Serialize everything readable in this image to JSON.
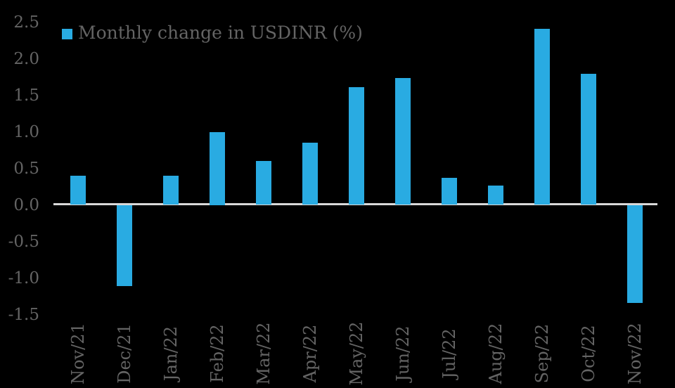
{
  "chart_data": {
    "type": "bar",
    "title": "",
    "legend": "Monthly change in USDINR (%)",
    "legend_position": "top-left",
    "categories": [
      "Nov/21",
      "Dec/21",
      "Jan/22",
      "Feb/22",
      "Mar/22",
      "Apr/22",
      "May/22",
      "Jun/22",
      "Jul/22",
      "Aug/22",
      "Sep/22",
      "Oct/22",
      "Nov/22"
    ],
    "values": [
      0.4,
      -1.11,
      0.4,
      1.0,
      0.6,
      0.85,
      1.61,
      1.74,
      0.37,
      0.26,
      2.41,
      1.79,
      -1.34
    ],
    "xlabel": "",
    "ylabel": "",
    "ylim": [
      -1.5,
      2.5
    ],
    "yticks": [
      2.5,
      2.0,
      1.5,
      1.0,
      0.5,
      0.0,
      -0.5,
      -1.0,
      -1.5
    ],
    "ytick_labels": [
      "2.5",
      "2.0",
      "1.5",
      "1.0",
      "0.5",
      "0.0",
      "-0.5",
      "-1.0",
      "-1.5"
    ],
    "grid": false
  },
  "colors": {
    "background": "#000000",
    "bar": "#29abe2",
    "text": "#646464",
    "axis_line": "#d9d9d9"
  }
}
